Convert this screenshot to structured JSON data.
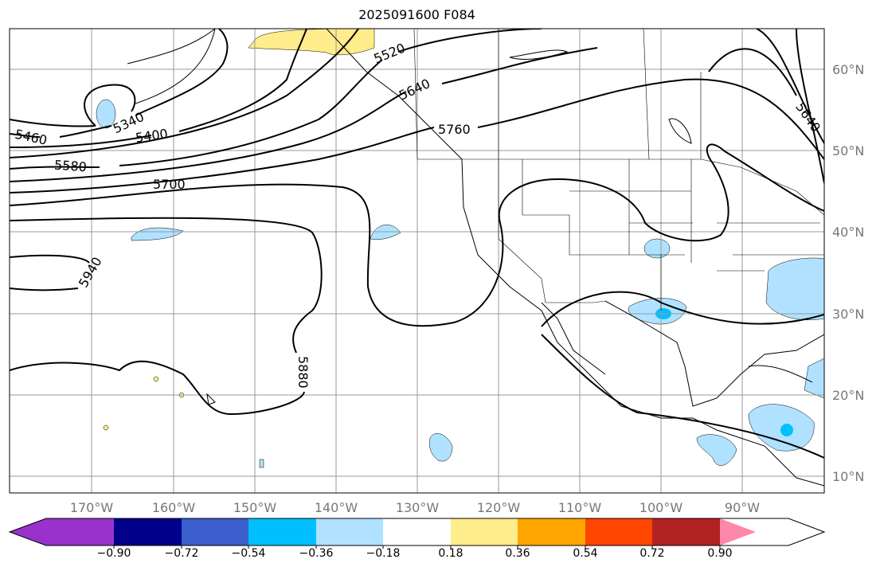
{
  "title": "2025091600 F084",
  "map": {
    "lon_labels": [
      "170°W",
      "160°W",
      "150°W",
      "140°W",
      "130°W",
      "120°W",
      "110°W",
      "100°W",
      "90°W"
    ],
    "lat_labels": [
      "60°N",
      "50°N",
      "40°N",
      "30°N",
      "20°N",
      "10°N"
    ],
    "contour_labels": [
      "5520",
      "5640",
      "5760",
      "5340",
      "5400",
      "5460",
      "5580",
      "5700",
      "5940",
      "5880",
      "5640"
    ]
  },
  "colorbar": {
    "colors": [
      "#9932cc",
      "#00008b",
      "#3a5fcd",
      "#00bfff",
      "#b0e2ff",
      "#ffffff",
      "#ffec8b",
      "#ffa500",
      "#ff4500",
      "#b22222",
      "#ff88aa"
    ],
    "ticks": [
      "−0.90",
      "−0.72",
      "−0.54",
      "−0.36",
      "−0.18",
      "0.18",
      "0.36",
      "0.54",
      "0.72",
      "0.90"
    ]
  }
}
